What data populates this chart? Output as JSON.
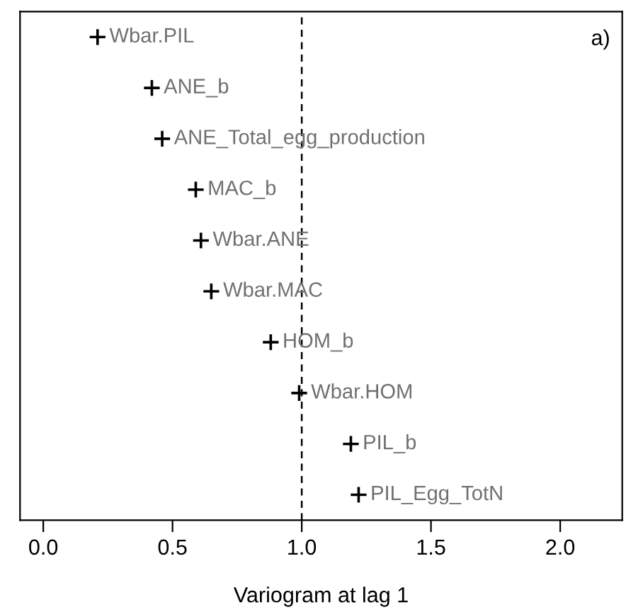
{
  "chart_data": {
    "type": "scatter",
    "orientation": "horizontal",
    "xlabel": "Variogram at lag 1",
    "categories": [
      "Wbar.PIL",
      "ANE_b",
      "ANE_Total_egg_production",
      "MAC_b",
      "Wbar.ANE",
      "Wbar.MAC",
      "HOM_b",
      "Wbar.HOM",
      "PIL_b",
      "PIL_Egg_TotN"
    ],
    "series": [
      {
        "color": "#000000",
        "values": [
          0.21,
          0.42,
          0.46,
          0.59,
          0.61,
          0.65,
          0.88,
          0.99,
          1.19,
          1.22
        ]
      }
    ],
    "marker": "cross",
    "xlim": [
      -0.09,
      2.24
    ],
    "xticks": [
      {
        "value": 0.0,
        "label": "0.0"
      },
      0.5,
      {
        "value": 1.0,
        "label": "1.0"
      },
      1.5,
      {
        "value": 2.0,
        "label": "2.0"
      }
    ],
    "ref_lines": [
      {
        "axis": "x",
        "value": 1.0,
        "label": null,
        "line_style": "dashed",
        "color": "#000000"
      }
    ],
    "annotations": [
      "a)"
    ],
    "grid": false,
    "legend": false,
    "tick_labels": "x"
  }
}
